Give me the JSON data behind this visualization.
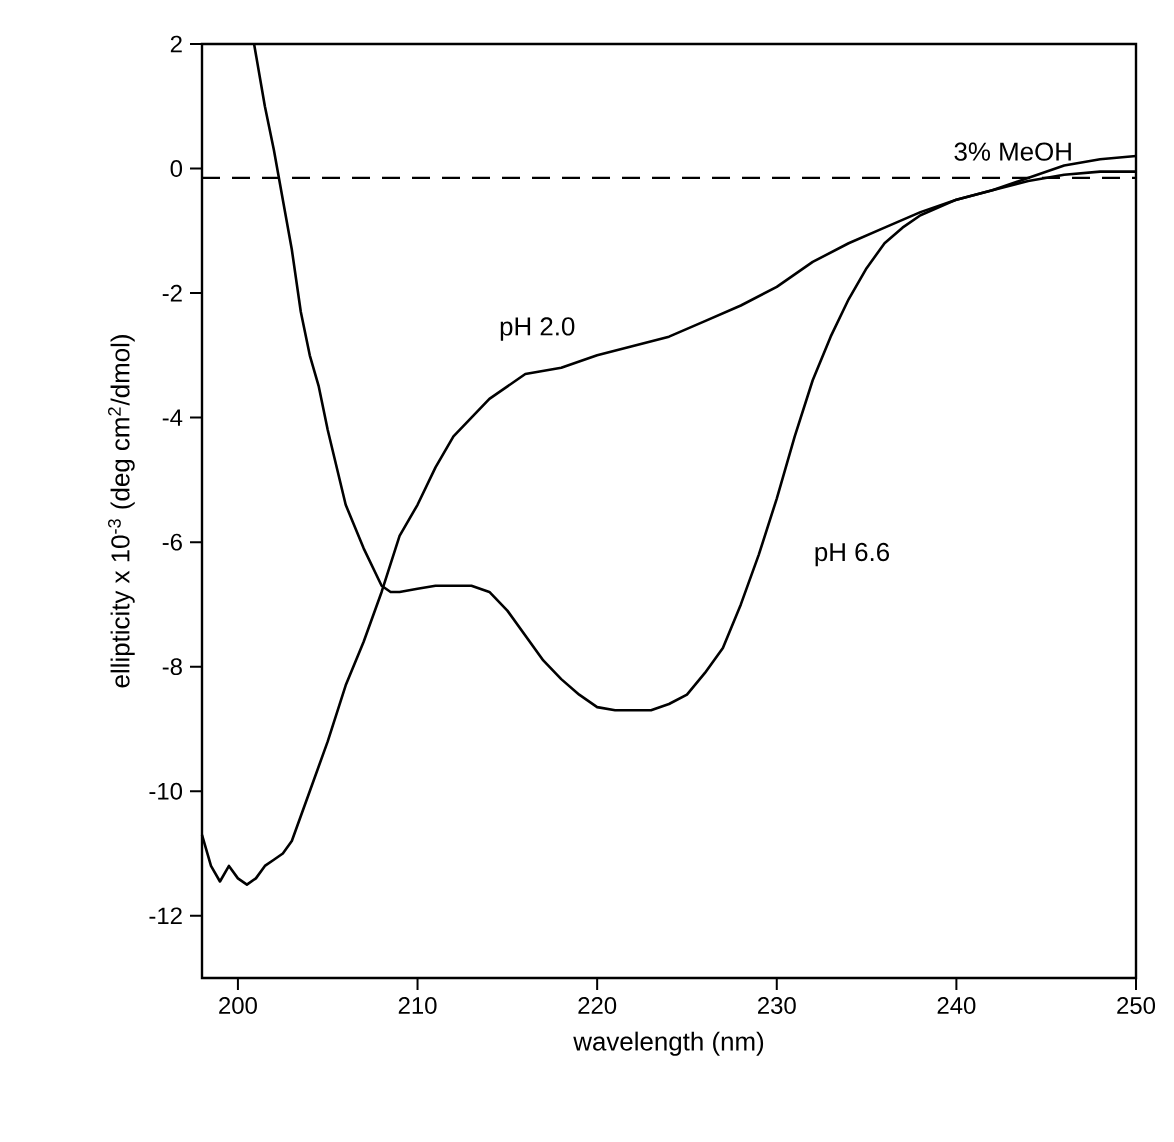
{
  "chart_data": {
    "type": "line",
    "xlabel": "wavelength (nm)",
    "ylabel": "ellipticity x 10$^{-3}$ (deg cm$^{2}$/dmol)",
    "xlim": [
      198,
      250
    ],
    "xticks": [
      200,
      210,
      220,
      230,
      240,
      250
    ],
    "ylim": [
      -13,
      2
    ],
    "yticks": [
      -12,
      -10,
      -8,
      -6,
      -4,
      -2,
      0,
      2
    ],
    "grid": false,
    "legend": false,
    "marker": "none",
    "line_style": "solid",
    "ref_lines": [
      {
        "axis": "y",
        "value": -0.15,
        "label": "3% MeOH",
        "line_style": "dashed",
        "color": "#000000"
      }
    ],
    "series": [
      {
        "name": "pH 2.0",
        "color": "#000000",
        "x": [
          198,
          198.5,
          199,
          199.5,
          200,
          200.5,
          201,
          201.5,
          202,
          202.5,
          203,
          204,
          205,
          206,
          207,
          208,
          209,
          210,
          211,
          212,
          213,
          214,
          215,
          216,
          218,
          220,
          222,
          224,
          226,
          228,
          230,
          232,
          234,
          236,
          238,
          240,
          242,
          244,
          246,
          248,
          250
        ],
        "values": [
          -10.7,
          -11.2,
          -11.45,
          -11.2,
          -11.4,
          -11.5,
          -11.4,
          -11.2,
          -11.1,
          -11.0,
          -10.8,
          -10.0,
          -9.2,
          -8.3,
          -7.6,
          -6.8,
          -5.9,
          -5.4,
          -4.8,
          -4.3,
          -4.0,
          -3.7,
          -3.5,
          -3.3,
          -3.2,
          -3.0,
          -2.85,
          -2.7,
          -2.45,
          -2.2,
          -1.9,
          -1.5,
          -1.2,
          -0.95,
          -0.7,
          -0.5,
          -0.35,
          -0.2,
          -0.1,
          -0.05,
          -0.05
        ]
      },
      {
        "name": "pH 6.6",
        "color": "#000000",
        "x": [
          200.9,
          201.5,
          202,
          202.5,
          203,
          203.5,
          204,
          204.5,
          205,
          206,
          207,
          208,
          208.5,
          209,
          210,
          211,
          212,
          213,
          214,
          215,
          216,
          217,
          218,
          219,
          220,
          221,
          222,
          223,
          224,
          225,
          226,
          227,
          228,
          229,
          230,
          231,
          232,
          233,
          234,
          235,
          236,
          237,
          238,
          240,
          242,
          244,
          246,
          248,
          250
        ],
        "values": [
          2,
          1.0,
          0.3,
          -0.5,
          -1.3,
          -2.3,
          -3.0,
          -3.5,
          -4.2,
          -5.4,
          -6.1,
          -6.7,
          -6.8,
          -6.8,
          -6.75,
          -6.7,
          -6.7,
          -6.7,
          -6.8,
          -7.1,
          -7.5,
          -7.9,
          -8.2,
          -8.45,
          -8.65,
          -8.7,
          -8.7,
          -8.7,
          -8.6,
          -8.45,
          -8.1,
          -7.7,
          -7.0,
          -6.2,
          -5.3,
          -4.3,
          -3.4,
          -2.7,
          -2.1,
          -1.6,
          -1.2,
          -0.95,
          -0.75,
          -0.5,
          -0.35,
          -0.15,
          0.05,
          0.15,
          0.2
        ]
      }
    ]
  }
}
